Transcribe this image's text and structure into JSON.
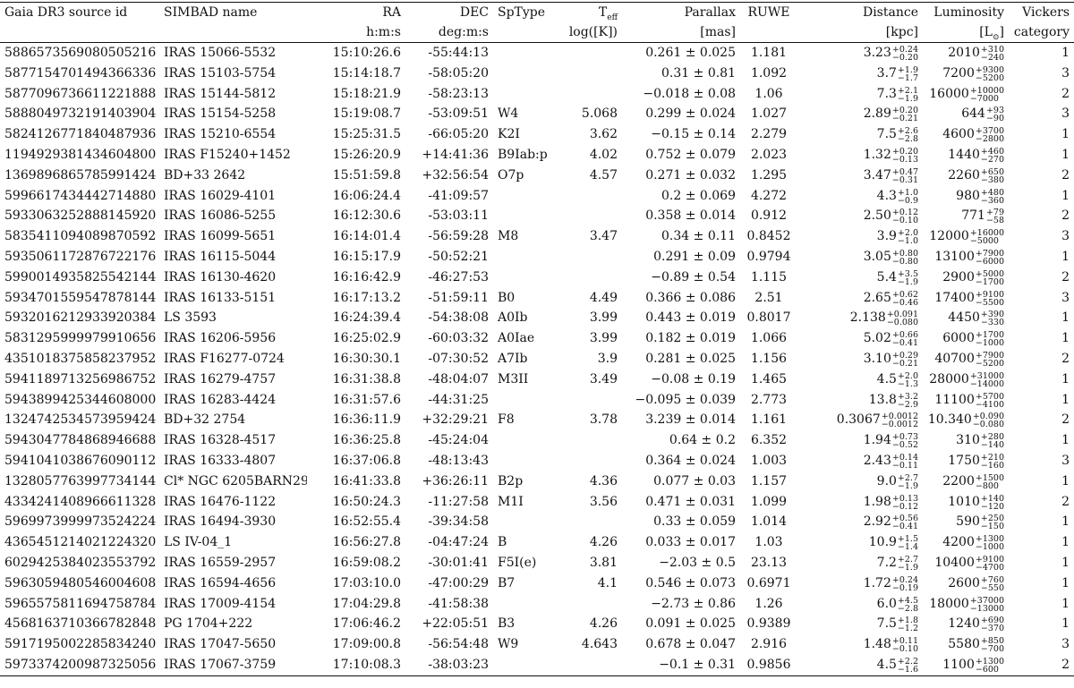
{
  "headers": {
    "gaia": "Gaia DR3 source id",
    "simbad": "SIMBAD name",
    "ra": "RA",
    "ra_unit": "h:m:s",
    "dec": "DEC",
    "dec_unit": "deg:m:s",
    "sptype": "SpType",
    "teff_main": "T",
    "teff_sub": "eff",
    "teff_unit": "log([K])",
    "parallax": "Parallax",
    "parallax_unit": "[mas]",
    "ruwe": "RUWE",
    "distance": "Distance",
    "distance_unit": "[kpc]",
    "lum": "Luminosity",
    "lum_unit_pre": "[L",
    "lum_unit_sym": "⊙",
    "lum_unit_post": "]",
    "vickers": "Vickers",
    "vickers_unit": "category"
  },
  "rows": [
    {
      "id": "5886573569080505216",
      "name": "IRAS 15066-5532",
      "ra": "15:10:26.6",
      "dec": "-55:44:13",
      "sp": "",
      "teff": "",
      "plx": "0.261 ± 0.025",
      "ruwe": "1.181",
      "d": "3.23",
      "dp": "+0.24",
      "dm": "−0.20",
      "L": "2010",
      "Lp": "+310",
      "Lm": "−240",
      "cat": "1"
    },
    {
      "id": "5877154701494366336",
      "name": "IRAS 15103-5754",
      "ra": "15:14:18.7",
      "dec": "-58:05:20",
      "sp": "",
      "teff": "",
      "plx": "0.31 ± 0.81",
      "ruwe": "1.092",
      "d": "3.7",
      "dp": "+1.9",
      "dm": "−1.7",
      "L": "7200",
      "Lp": "+9300",
      "Lm": "−5200",
      "cat": "3"
    },
    {
      "id": "5877096736611221888",
      "name": "IRAS 15144-5812",
      "ra": "15:18:21.9",
      "dec": "-58:23:13",
      "sp": "",
      "teff": "",
      "plx": "−0.018 ± 0.08",
      "ruwe": "1.06",
      "d": "7.3",
      "dp": "+2.1",
      "dm": "−1.9",
      "L": "16000",
      "Lp": "+10000",
      "Lm": "−7000",
      "cat": "2"
    },
    {
      "id": "5888049732191403904",
      "name": "IRAS 15154-5258",
      "ra": "15:19:08.7",
      "dec": "-53:09:51",
      "sp": "W4",
      "teff": "5.068",
      "plx": "0.299 ± 0.024",
      "ruwe": "1.027",
      "d": "2.89",
      "dp": "+0.20",
      "dm": "−0.21",
      "L": "644",
      "Lp": "+93",
      "Lm": "−90",
      "cat": "3"
    },
    {
      "id": "5824126771840487936",
      "name": "IRAS 15210-6554",
      "ra": "15:25:31.5",
      "dec": "-66:05:20",
      "sp": "K2I",
      "teff": "3.62",
      "plx": "−0.15 ± 0.14",
      "ruwe": "2.279",
      "d": "7.5",
      "dp": "+2.6",
      "dm": "−2.8",
      "L": "4600",
      "Lp": "+3700",
      "Lm": "−2800",
      "cat": "1"
    },
    {
      "id": "1194929381434604800",
      "name": "IRAS F15240+1452",
      "ra": "15:26:20.9",
      "dec": "+14:41:36",
      "sp": "B9Iab:p",
      "teff": "4.02",
      "plx": "0.752 ± 0.079",
      "ruwe": "2.023",
      "d": "1.32",
      "dp": "+0.20",
      "dm": "−0.13",
      "L": "1440",
      "Lp": "+460",
      "Lm": "−270",
      "cat": "1"
    },
    {
      "id": "1369896865785991424",
      "name": "BD+33 2642",
      "ra": "15:51:59.8",
      "dec": "+32:56:54",
      "sp": "O7p",
      "teff": "4.57",
      "plx": "0.271 ± 0.032",
      "ruwe": "1.295",
      "d": "3.47",
      "dp": "+0.47",
      "dm": "−0.31",
      "L": "2260",
      "Lp": "+650",
      "Lm": "−380",
      "cat": "2"
    },
    {
      "id": "5996617434442714880",
      "name": "IRAS 16029-4101",
      "ra": "16:06:24.4",
      "dec": "-41:09:57",
      "sp": "",
      "teff": "",
      "plx": "0.2 ± 0.069",
      "ruwe": "4.272",
      "d": "4.3",
      "dp": "+1.0",
      "dm": "−0.9",
      "L": "980",
      "Lp": "+480",
      "Lm": "−360",
      "cat": "1"
    },
    {
      "id": "5933063252888145920",
      "name": "IRAS 16086-5255",
      "ra": "16:12:30.6",
      "dec": "-53:03:11",
      "sp": "",
      "teff": "",
      "plx": "0.358 ± 0.014",
      "ruwe": "0.912",
      "d": "2.50",
      "dp": "+0.12",
      "dm": "−0.10",
      "L": "771",
      "Lp": "+79",
      "Lm": "−58",
      "cat": "2"
    },
    {
      "id": "5835411094089870592",
      "name": "IRAS 16099-5651",
      "ra": "16:14:01.4",
      "dec": "-56:59:28",
      "sp": "M8",
      "teff": "3.47",
      "plx": "0.34 ± 0.11",
      "ruwe": "0.8452",
      "d": "3.9",
      "dp": "+2.0",
      "dm": "−1.0",
      "L": "12000",
      "Lp": "+16000",
      "Lm": "−5000",
      "cat": "3"
    },
    {
      "id": "5935061172876722176",
      "name": "IRAS 16115-5044",
      "ra": "16:15:17.9",
      "dec": "-50:52:21",
      "sp": "",
      "teff": "",
      "plx": "0.291 ± 0.09",
      "ruwe": "0.9794",
      "d": "3.05",
      "dp": "+0.80",
      "dm": "−0.80",
      "L": "13100",
      "Lp": "+7900",
      "Lm": "−6000",
      "cat": "1"
    },
    {
      "id": "5990014935825542144",
      "name": "IRAS 16130-4620",
      "ra": "16:16:42.9",
      "dec": "-46:27:53",
      "sp": "",
      "teff": "",
      "plx": "−0.89 ± 0.54",
      "ruwe": "1.115",
      "d": "5.4",
      "dp": "+3.5",
      "dm": "−1.9",
      "L": "2900",
      "Lp": "+5000",
      "Lm": "−1700",
      "cat": "2"
    },
    {
      "id": "5934701559547878144",
      "name": "IRAS 16133-5151",
      "ra": "16:17:13.2",
      "dec": "-51:59:11",
      "sp": "B0",
      "teff": "4.49",
      "plx": "0.366 ± 0.086",
      "ruwe": "2.51",
      "d": "2.65",
      "dp": "+0.62",
      "dm": "−0.46",
      "L": "17400",
      "Lp": "+9100",
      "Lm": "−5500",
      "cat": "3"
    },
    {
      "id": "5932016212933920384",
      "name": "LS 3593",
      "ra": "16:24:39.4",
      "dec": "-54:38:08",
      "sp": "A0Ib",
      "teff": "3.99",
      "plx": "0.443 ± 0.019",
      "ruwe": "0.8017",
      "d": "2.138",
      "dp": "+0.091",
      "dm": "−0.080",
      "L": "4450",
      "Lp": "+390",
      "Lm": "−330",
      "cat": "1"
    },
    {
      "id": "5831295999979910656",
      "name": "IRAS 16206-5956",
      "ra": "16:25:02.9",
      "dec": "-60:03:32",
      "sp": "A0Iae",
      "teff": "3.99",
      "plx": "0.182 ± 0.019",
      "ruwe": "1.066",
      "d": "5.02",
      "dp": "+0.66",
      "dm": "−0.41",
      "L": "6000",
      "Lp": "+1700",
      "Lm": "−1000",
      "cat": "1"
    },
    {
      "id": "4351018375858237952",
      "name": "IRAS F16277-0724",
      "ra": "16:30:30.1",
      "dec": "-07:30:52",
      "sp": "A7Ib",
      "teff": "3.9",
      "plx": "0.281 ± 0.025",
      "ruwe": "1.156",
      "d": "3.10",
      "dp": "+0.29",
      "dm": "−0.21",
      "L": "40700",
      "Lp": "+7900",
      "Lm": "−5200",
      "cat": "2"
    },
    {
      "id": "5941189713256986752",
      "name": "IRAS 16279-4757",
      "ra": "16:31:38.8",
      "dec": "-48:04:07",
      "sp": "M3II",
      "teff": "3.49",
      "plx": "−0.08 ± 0.19",
      "ruwe": "1.465",
      "d": "4.5",
      "dp": "+2.0",
      "dm": "−1.3",
      "L": "28000",
      "Lp": "+31000",
      "Lm": "−14000",
      "cat": "1"
    },
    {
      "id": "5943899425344608000",
      "name": "IRAS 16283-4424",
      "ra": "16:31:57.6",
      "dec": "-44:31:25",
      "sp": "",
      "teff": "",
      "plx": "−0.095 ± 0.039",
      "ruwe": "2.773",
      "d": "13.8",
      "dp": "+3.2",
      "dm": "−2.9",
      "L": "11100",
      "Lp": "+5700",
      "Lm": "−4100",
      "cat": "1"
    },
    {
      "id": "1324742534573959424",
      "name": "BD+32 2754",
      "ra": "16:36:11.9",
      "dec": "+32:29:21",
      "sp": "F8",
      "teff": "3.78",
      "plx": "3.239 ± 0.014",
      "ruwe": "1.161",
      "d": "0.3067",
      "dp": "+0.0012",
      "dm": "−0.0012",
      "L": "10.340",
      "Lp": "+0.090",
      "Lm": "−0.080",
      "cat": "2"
    },
    {
      "id": "5943047784868946688",
      "name": "IRAS 16328-4517",
      "ra": "16:36:25.8",
      "dec": "-45:24:04",
      "sp": "",
      "teff": "",
      "plx": "0.64 ± 0.2",
      "ruwe": "6.352",
      "d": "1.94",
      "dp": "+0.73",
      "dm": "−0.52",
      "L": "310",
      "Lp": "+280",
      "Lm": "−140",
      "cat": "1"
    },
    {
      "id": "5941041038676090112",
      "name": "IRAS 16333-4807",
      "ra": "16:37:06.8",
      "dec": "-48:13:43",
      "sp": "",
      "teff": "",
      "plx": "0.364 ± 0.024",
      "ruwe": "1.003",
      "d": "2.43",
      "dp": "+0.14",
      "dm": "−0.11",
      "L": "1750",
      "Lp": "+210",
      "Lm": "−160",
      "cat": "3"
    },
    {
      "id": "1328057763997734144",
      "name": "Cl* NGC 6205BARN29",
      "ra": "16:41:33.8",
      "dec": "+36:26:11",
      "sp": "B2p",
      "teff": "4.36",
      "plx": "0.077 ± 0.03",
      "ruwe": "1.157",
      "d": "9.0",
      "dp": "+2.7",
      "dm": "−1.9",
      "L": "2200",
      "Lp": "+1500",
      "Lm": "−800",
      "cat": "1"
    },
    {
      "id": "4334241408966611328",
      "name": "IRAS 16476-1122",
      "ra": "16:50:24.3",
      "dec": "-11:27:58",
      "sp": "M1I",
      "teff": "3.56",
      "plx": "0.471 ± 0.031",
      "ruwe": "1.099",
      "d": "1.98",
      "dp": "+0.13",
      "dm": "−0.12",
      "L": "1010",
      "Lp": "+140",
      "Lm": "−120",
      "cat": "2"
    },
    {
      "id": "5969973999973524224",
      "name": "IRAS 16494-3930",
      "ra": "16:52:55.4",
      "dec": "-39:34:58",
      "sp": "",
      "teff": "",
      "plx": "0.33 ± 0.059",
      "ruwe": "1.014",
      "d": "2.92",
      "dp": "+0.56",
      "dm": "−0.41",
      "L": "590",
      "Lp": "+250",
      "Lm": "−150",
      "cat": "1"
    },
    {
      "id": "4365451214021224320",
      "name": "LS IV-04_1",
      "ra": "16:56:27.8",
      "dec": "-04:47:24",
      "sp": "B",
      "teff": "4.26",
      "plx": "0.033 ± 0.017",
      "ruwe": "1.03",
      "d": "10.9",
      "dp": "+1.5",
      "dm": "−1.4",
      "L": "4200",
      "Lp": "+1300",
      "Lm": "−1000",
      "cat": "1"
    },
    {
      "id": "6029425384023553792",
      "name": "IRAS 16559-2957",
      "ra": "16:59:08.2",
      "dec": "-30:01:41",
      "sp": "F5I(e)",
      "teff": "3.81",
      "plx": "−2.03 ± 0.5",
      "ruwe": "23.13",
      "d": "7.2",
      "dp": "+2.7",
      "dm": "−1.9",
      "L": "10400",
      "Lp": "+9100",
      "Lm": "−4700",
      "cat": "1"
    },
    {
      "id": "5963059480546004608",
      "name": "IRAS 16594-4656",
      "ra": "17:03:10.0",
      "dec": "-47:00:29",
      "sp": "B7",
      "teff": "4.1",
      "plx": "0.546 ± 0.073",
      "ruwe": "0.6971",
      "d": "1.72",
      "dp": "+0.24",
      "dm": "−0.19",
      "L": "2600",
      "Lp": "+760",
      "Lm": "−550",
      "cat": "1"
    },
    {
      "id": "5965575811694758784",
      "name": "IRAS 17009-4154",
      "ra": "17:04:29.8",
      "dec": "-41:58:38",
      "sp": "",
      "teff": "",
      "plx": "−2.73 ± 0.86",
      "ruwe": "1.26",
      "d": "6.0",
      "dp": "+4.5",
      "dm": "−2.8",
      "L": "18000",
      "Lp": "+37000",
      "Lm": "−13000",
      "cat": "1"
    },
    {
      "id": "4568163710366782848",
      "name": "PG 1704+222",
      "ra": "17:06:46.2",
      "dec": "+22:05:51",
      "sp": "B3",
      "teff": "4.26",
      "plx": "0.091 ± 0.025",
      "ruwe": "0.9389",
      "d": "7.5",
      "dp": "+1.8",
      "dm": "−1.2",
      "L": "1240",
      "Lp": "+690",
      "Lm": "−370",
      "cat": "1"
    },
    {
      "id": "5917195002285834240",
      "name": "IRAS 17047-5650",
      "ra": "17:09:00.8",
      "dec": "-56:54:48",
      "sp": "W9",
      "teff": "4.643",
      "plx": "0.678 ± 0.047",
      "ruwe": "2.916",
      "d": "1.48",
      "dp": "+0.11",
      "dm": "−0.10",
      "L": "5580",
      "Lp": "+850",
      "Lm": "−700",
      "cat": "3"
    },
    {
      "id": "5973374200987325056",
      "name": "IRAS 17067-3759",
      "ra": "17:10:08.3",
      "dec": "-38:03:23",
      "sp": "",
      "teff": "",
      "plx": "−0.1 ± 0.31",
      "ruwe": "0.9856",
      "d": "4.5",
      "dp": "+2.2",
      "dm": "−1.6",
      "L": "1100",
      "Lp": "+1300",
      "Lm": "−600",
      "cat": "2"
    }
  ]
}
